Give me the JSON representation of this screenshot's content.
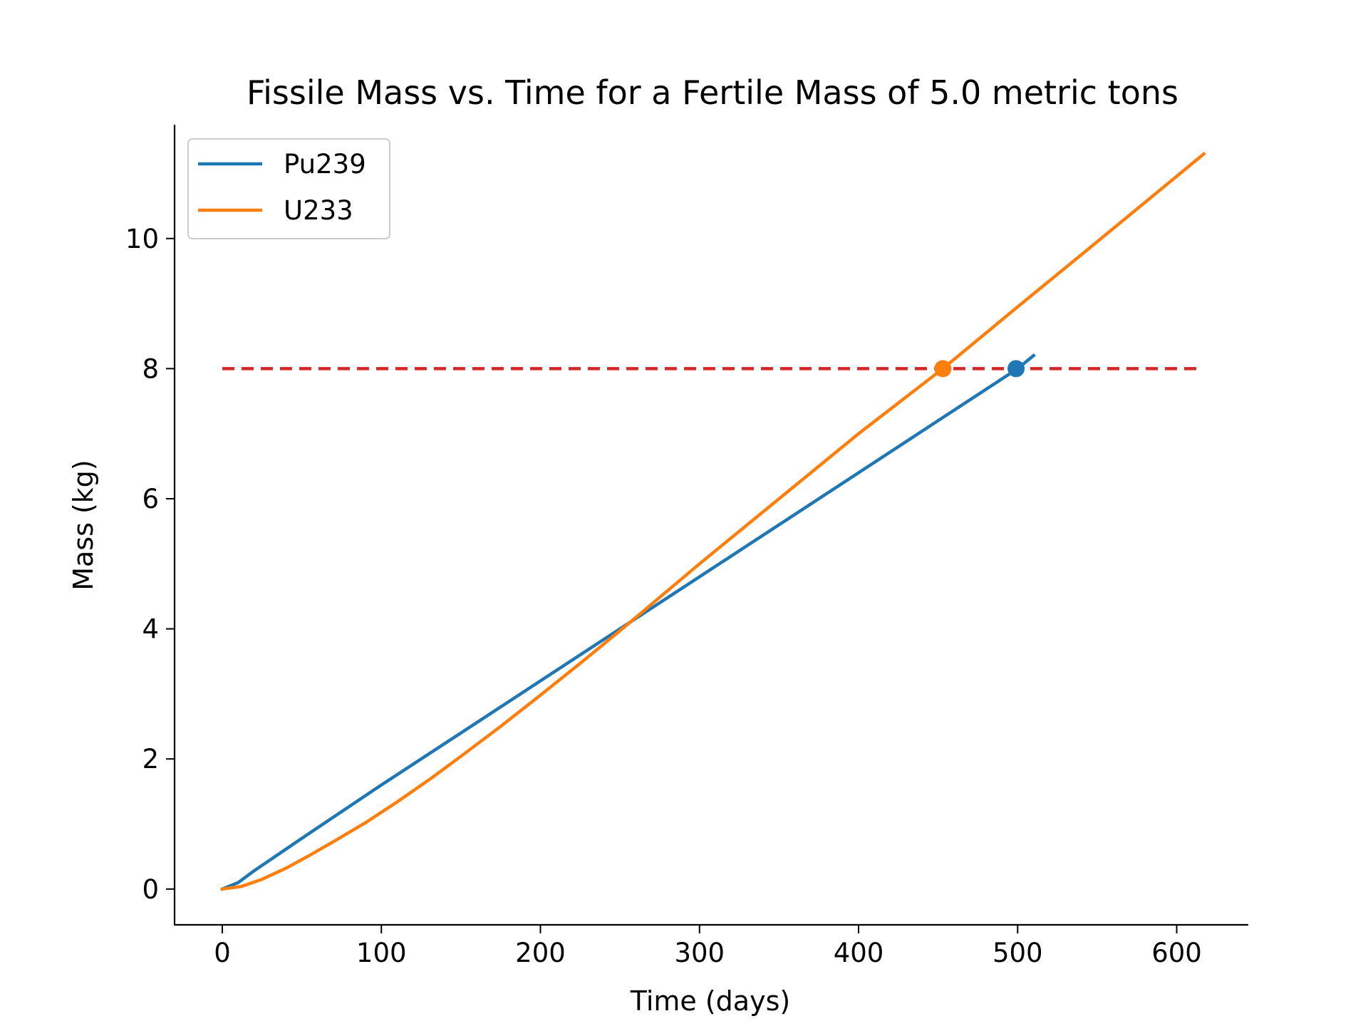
{
  "chart_data": {
    "type": "line",
    "title": "Fissile Mass vs. Time for a Fertile Mass of 5.0 metric tons",
    "xlabel": "Time (days)",
    "ylabel": "Mass (kg)",
    "xlim": [
      -30,
      645
    ],
    "ylim": [
      -0.55,
      11.75
    ],
    "xticks": [
      0,
      100,
      200,
      300,
      400,
      500,
      600
    ],
    "yticks": [
      0,
      2,
      4,
      6,
      8,
      10
    ],
    "grid": false,
    "legend_position": "upper-left",
    "series": [
      {
        "name": "Pu239",
        "color": "#1f77b4",
        "x": [
          0,
          10,
          20,
          50,
          100,
          150,
          200,
          250,
          300,
          350,
          400,
          450,
          500,
          510
        ],
        "y": [
          0,
          0.1,
          0.28,
          0.78,
          1.6,
          2.4,
          3.2,
          4.0,
          4.8,
          5.6,
          6.4,
          7.2,
          8.0,
          8.2
        ]
      },
      {
        "name": "U233",
        "color": "#ff7f0e",
        "x": [
          0,
          12,
          25,
          40,
          55,
          70,
          90,
          110,
          130,
          150,
          175,
          200,
          225,
          250,
          300,
          350,
          400,
          453,
          500,
          550,
          617
        ],
        "y": [
          0,
          0.04,
          0.15,
          0.32,
          0.52,
          0.73,
          1.02,
          1.34,
          1.68,
          2.04,
          2.5,
          2.98,
          3.47,
          3.97,
          5.0,
          6.0,
          7.0,
          8.0,
          8.95,
          9.95,
          11.3
        ]
      }
    ],
    "threshold": {
      "y": 8,
      "x_start": 0,
      "x_end": 615,
      "color": "#d62728",
      "style": "dashed"
    },
    "markers": [
      {
        "series": "U233",
        "x": 453,
        "y": 8,
        "color": "#ff7f0e"
      },
      {
        "series": "Pu239",
        "x": 499,
        "y": 8,
        "color": "#1f77b4"
      }
    ]
  }
}
